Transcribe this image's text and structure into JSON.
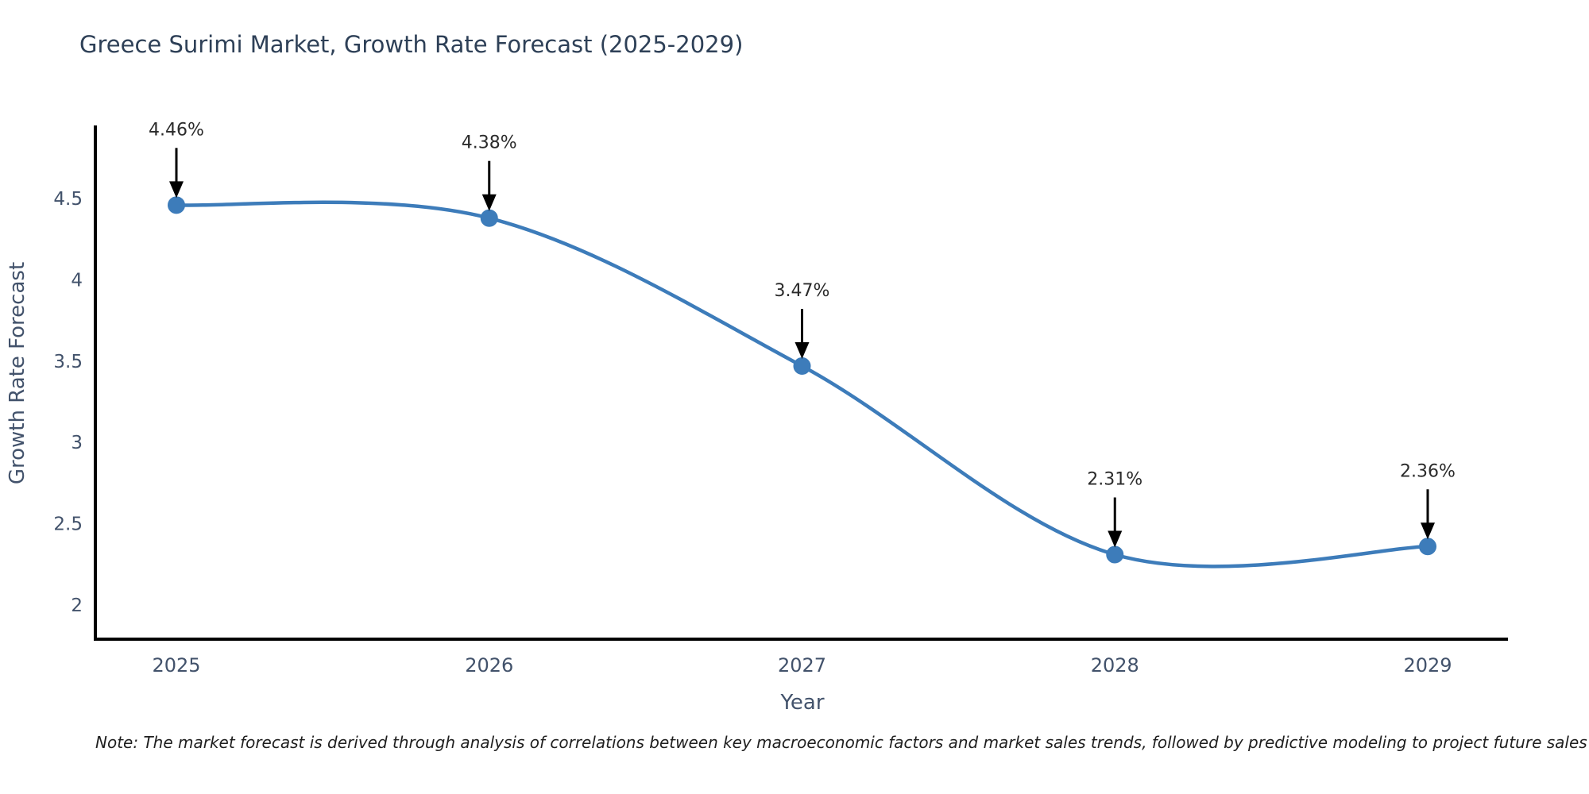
{
  "chart_data": {
    "type": "line",
    "title": "Greece Surimi Market, Growth Rate Forecast (2025-2029)",
    "xlabel": "Year",
    "ylabel": "Growth Rate Forecast",
    "categories": [
      "2025",
      "2026",
      "2027",
      "2028",
      "2029"
    ],
    "series": [
      {
        "name": "Growth Rate Forecast",
        "values": [
          4.46,
          4.38,
          3.47,
          2.31,
          2.36
        ],
        "point_labels": [
          "4.46%",
          "4.38%",
          "3.47%",
          "2.31%",
          "2.36%"
        ]
      }
    ],
    "y_ticks": [
      "2",
      "2.5",
      "3",
      "3.5",
      "4",
      "4.5"
    ],
    "ylim": [
      1.78,
      4.95
    ],
    "grid": false,
    "legend_position": "none",
    "line_shape": "spline",
    "markers": "circle",
    "annotations": "arrow-down-to-point",
    "colors": {
      "line": "#3d7cba",
      "marker": "#3d7cba",
      "axis": "#000000",
      "tick_label": "#42526b",
      "axis_title": "#42526b",
      "title": "#2e4057",
      "annotation_text": "#2b2b2b",
      "annotation_arrow": "#000000",
      "background": "#ffffff"
    }
  },
  "note": "Note: The market forecast is derived through analysis of correlations between key macroeconomic factors and market sales trends, followed by predictive modeling to project future sales"
}
